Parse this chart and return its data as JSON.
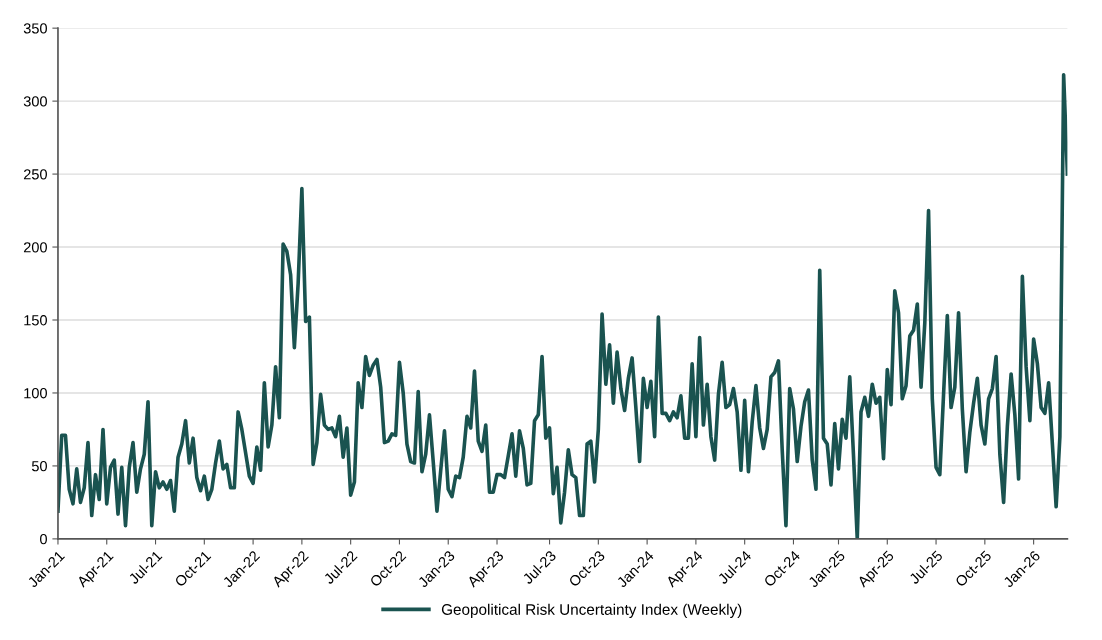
{
  "chart_data": {
    "type": "line",
    "categories": [
      "Jan-21",
      null,
      null,
      null,
      null,
      null,
      null,
      null,
      null,
      null,
      null,
      null,
      null,
      "Apr-21",
      null,
      null,
      null,
      null,
      null,
      null,
      null,
      null,
      null,
      null,
      null,
      null,
      "Jul-21",
      null,
      null,
      null,
      null,
      null,
      null,
      null,
      null,
      null,
      null,
      null,
      null,
      "Oct-21",
      null,
      null,
      null,
      null,
      null,
      null,
      null,
      null,
      null,
      null,
      null,
      null,
      "Jan-22",
      null,
      null,
      null,
      null,
      null,
      null,
      null,
      null,
      null,
      null,
      null,
      null,
      "Apr-22",
      null,
      null,
      null,
      null,
      null,
      null,
      null,
      null,
      null,
      null,
      null,
      null,
      "Jul-22",
      null,
      null,
      null,
      null,
      null,
      null,
      null,
      null,
      null,
      null,
      null,
      null,
      "Oct-22",
      null,
      null,
      null,
      null,
      null,
      null,
      null,
      null,
      null,
      null,
      null,
      null,
      "Jan-23",
      null,
      null,
      null,
      null,
      null,
      null,
      null,
      null,
      null,
      null,
      null,
      null,
      "Apr-23",
      null,
      null,
      null,
      null,
      null,
      null,
      null,
      null,
      null,
      null,
      null,
      null,
      null,
      "Jul-23",
      null,
      null,
      null,
      null,
      null,
      null,
      null,
      null,
      null,
      null,
      null,
      null,
      "Oct-23",
      null,
      null,
      null,
      null,
      null,
      null,
      null,
      null,
      null,
      null,
      null,
      null,
      "Jan-24",
      null,
      null,
      null,
      null,
      null,
      null,
      null,
      null,
      null,
      null,
      null,
      null,
      "Apr-24",
      null,
      null,
      null,
      null,
      null,
      null,
      null,
      null,
      null,
      null,
      null,
      null,
      "Jul-24",
      null,
      null,
      null,
      null,
      null,
      null,
      null,
      null,
      null,
      null,
      null,
      null,
      "Oct-24",
      null,
      null,
      null,
      null,
      null,
      null,
      null,
      null,
      null,
      null,
      null,
      "Jan-25",
      null,
      null,
      null,
      null,
      null,
      null,
      null,
      null,
      null,
      null,
      null,
      null,
      "Apr-25",
      null,
      null,
      null,
      null,
      null,
      null,
      null,
      null,
      null,
      null,
      null,
      null,
      "Jul-25",
      null,
      null,
      null,
      null,
      null,
      null,
      null,
      null,
      null,
      null,
      null,
      null,
      "Oct-25",
      null,
      null,
      null,
      null,
      null,
      null,
      null,
      null,
      null,
      null,
      null,
      null,
      "Jan-26",
      null,
      null,
      null,
      null,
      null,
      null,
      null,
      null,
      null
    ],
    "series": [
      {
        "name": "Geopolitical Risk Uncertainty Index (Weekly)",
        "color": "#1a5350",
        "values": [
          19,
          71,
          71,
          34,
          24,
          48,
          25,
          35,
          66,
          16,
          44,
          27,
          75,
          24,
          49,
          54,
          17,
          49,
          9,
          49,
          66,
          32,
          48,
          58,
          94,
          9,
          46,
          35,
          39,
          34,
          40,
          19,
          56,
          65,
          81,
          52,
          69,
          42,
          33,
          43,
          27,
          34,
          52,
          67,
          48,
          51,
          35,
          35,
          87,
          75,
          59,
          43,
          38,
          63,
          47,
          107,
          63,
          78,
          118,
          83,
          202,
          197,
          181,
          131,
          175,
          240,
          149,
          152,
          51,
          66,
          99,
          78,
          75,
          76,
          70,
          84,
          56,
          76,
          30,
          39,
          107,
          90,
          125,
          112,
          119,
          123,
          104,
          66,
          67,
          72,
          71,
          121,
          100,
          65,
          53,
          52,
          101,
          46,
          58,
          85,
          53,
          19,
          47,
          74,
          34,
          29,
          43,
          42,
          56,
          84,
          76,
          115,
          67,
          60,
          78,
          32,
          32,
          44,
          44,
          42,
          57,
          72,
          43,
          74,
          62,
          37,
          38,
          81,
          85,
          125,
          69,
          76,
          31,
          49,
          11,
          32,
          61,
          44,
          42,
          16,
          16,
          65,
          67,
          39,
          75,
          154,
          106,
          133,
          93,
          128,
          103,
          88,
          110,
          124,
          90,
          53,
          110,
          90,
          108,
          70,
          152,
          86,
          86,
          81,
          87,
          83,
          98,
          69,
          69,
          120,
          70,
          138,
          78,
          106,
          70,
          54,
          99,
          121,
          90,
          92,
          103,
          87,
          47,
          95,
          46,
          80,
          105,
          76,
          62,
          75,
          111,
          114,
          122,
          61,
          9,
          103,
          89,
          53,
          77,
          94,
          102,
          54,
          34,
          184,
          69,
          65,
          37,
          79,
          48,
          82,
          69,
          111,
          57,
          0,
          87,
          97,
          84,
          106,
          93,
          97,
          55,
          116,
          92,
          170,
          155,
          96,
          105,
          139,
          143,
          161,
          104,
          148,
          225,
          96,
          49,
          44,
          99,
          153,
          90,
          104,
          155,
          89,
          46,
          73,
          93,
          110,
          78,
          65,
          96,
          103,
          125,
          58,
          25,
          77,
          113,
          85,
          41,
          180,
          118,
          81,
          137,
          120,
          90,
          86,
          107,
          65,
          22,
          70,
          318,
          250
        ]
      }
    ],
    "ylim": [
      0,
      350
    ],
    "yticks": [
      0,
      50,
      100,
      150,
      200,
      250,
      300,
      350
    ],
    "grid": "y",
    "legend": "bottom",
    "line_style": "solid",
    "marker": "none"
  }
}
